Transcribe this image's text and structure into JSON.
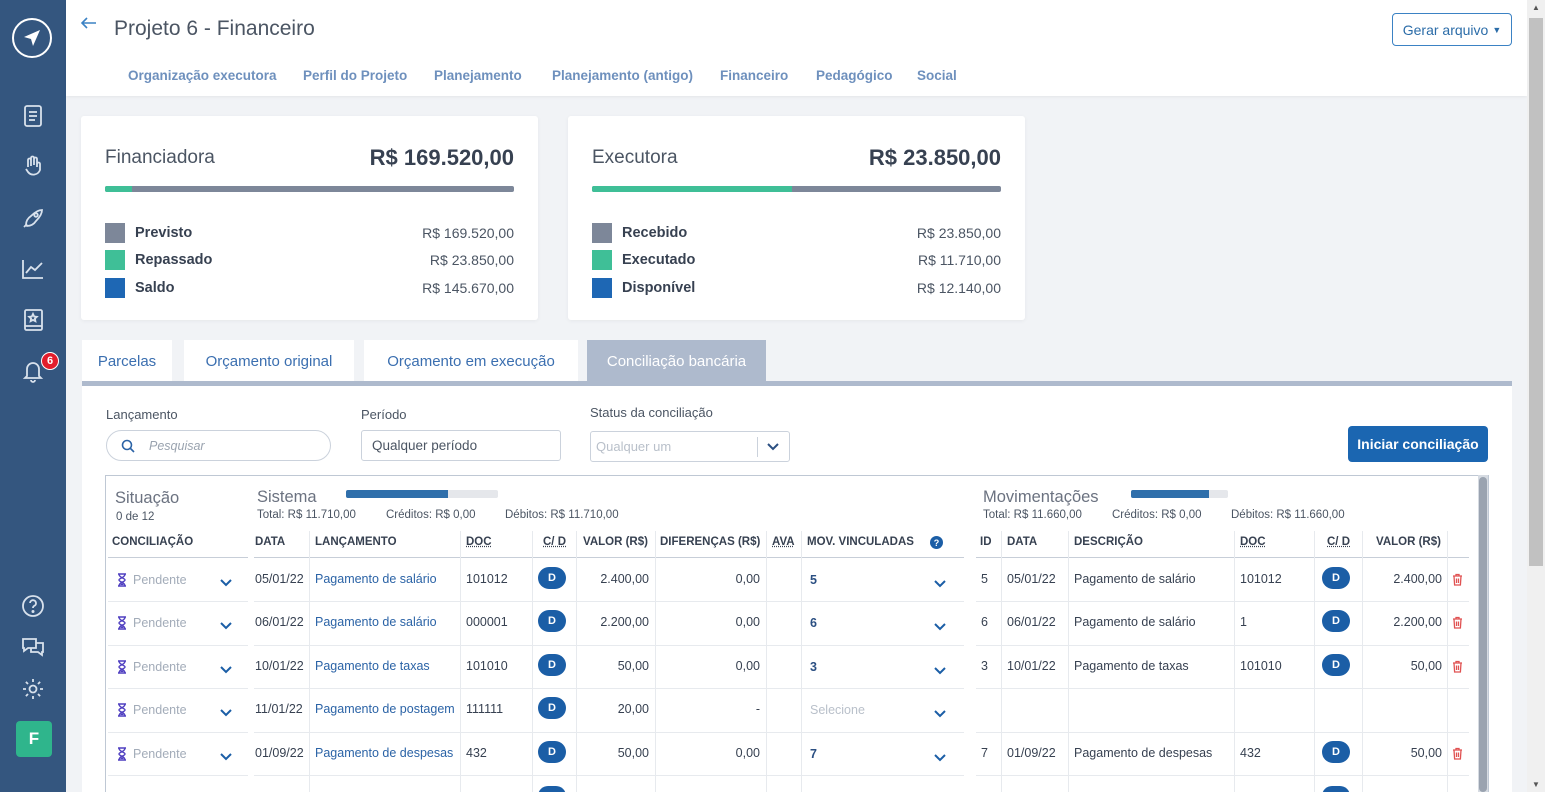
{
  "app": {
    "notifications_count": "6",
    "avatar_letter": "F"
  },
  "header": {
    "title": "Projeto 6 - Financeiro",
    "generate_label": "Gerar arquivo",
    "tabs": [
      "Organização executora",
      "Perfil do Projeto",
      "Planejamento",
      "Planejamento (antigo)",
      "Financeiro",
      "Pedagógico",
      "Social"
    ]
  },
  "financiadora": {
    "title": "Financiadora",
    "total": "R$ 169.520,00",
    "progress": 0.066,
    "rows": [
      {
        "label": "Previsto",
        "value": "R$ 169.520,00",
        "color": "#7d8799"
      },
      {
        "label": "Repassado",
        "value": "R$ 23.850,00",
        "color": "#3fbf97"
      },
      {
        "label": "Saldo",
        "value": "R$ 145.670,00",
        "color": "#1e67b4"
      }
    ]
  },
  "executora": {
    "title": "Executora",
    "total": "R$ 23.850,00",
    "progress": 0.49,
    "rows": [
      {
        "label": "Recebido",
        "value": "R$ 23.850,00",
        "color": "#7d8799"
      },
      {
        "label": "Executado",
        "value": "R$ 11.710,00",
        "color": "#3fbf97"
      },
      {
        "label": "Disponível",
        "value": "R$ 12.140,00",
        "color": "#1e67b4"
      }
    ]
  },
  "subtabs": [
    "Parcelas",
    "Orçamento original",
    "Orçamento em execução",
    "Conciliação bancária"
  ],
  "filters": {
    "lancamento_label": "Lançamento",
    "search_placeholder": "Pesquisar",
    "periodo_label": "Período",
    "periodo_value": "Qualquer período",
    "status_label": "Status da conciliação",
    "status_placeholder": "Qualquer um",
    "start_button": "Iniciar conciliação"
  },
  "situacao": {
    "title": "Situação",
    "count": "0 de 12",
    "col_header": "CONCILIAÇÃO",
    "status_label": "Pendente"
  },
  "sistema": {
    "title": "Sistema",
    "progress": 0.67,
    "total": "Total: R$ 11.710,00",
    "creditos": "Créditos: R$ 0,00",
    "debitos": "Débitos: R$ 11.710,00",
    "headers": [
      "DATA",
      "LANÇAMENTO",
      "DOC",
      "C/ D",
      "VALOR (R$)",
      "DIFERENÇAS (R$)",
      "AVA",
      "MOV. VINCULADAS"
    ],
    "rows": [
      {
        "data": "05/01/22",
        "lancamento": "Pagamento de salário",
        "doc": "101012",
        "cd": "D",
        "valor": "2.400,00",
        "diferenca": "0,00",
        "mov": "5"
      },
      {
        "data": "06/01/22",
        "lancamento": "Pagamento de salário",
        "doc": "000001",
        "cd": "D",
        "valor": "2.200,00",
        "diferenca": "0,00",
        "mov": "6"
      },
      {
        "data": "10/01/22",
        "lancamento": "Pagamento de taxas",
        "doc": "101010",
        "cd": "D",
        "valor": "50,00",
        "diferenca": "0,00",
        "mov": "3"
      },
      {
        "data": "11/01/22",
        "lancamento": "Pagamento de postagem",
        "doc": "111111",
        "cd": "D",
        "valor": "20,00",
        "diferenca": "-",
        "mov": "Selecione"
      },
      {
        "data": "01/09/22",
        "lancamento": "Pagamento de despesas",
        "doc": "432",
        "cd": "D",
        "valor": "50,00",
        "diferenca": "0,00",
        "mov": "7"
      }
    ]
  },
  "movimentacoes": {
    "title": "Movimentações",
    "progress": 0.8,
    "total": "Total: R$ 11.660,00",
    "creditos": "Créditos: R$ 0,00",
    "debitos": "Débitos: R$ 11.660,00",
    "headers": [
      "ID",
      "DATA",
      "DESCRIÇÃO",
      "DOC",
      "C/ D",
      "VALOR (R$)"
    ],
    "rows": [
      {
        "id": "5",
        "data": "05/01/22",
        "descricao": "Pagamento de salário",
        "doc": "101012",
        "cd": "D",
        "valor": "2.400,00"
      },
      {
        "id": "6",
        "data": "06/01/22",
        "descricao": "Pagamento de salário",
        "doc": "1",
        "cd": "D",
        "valor": "2.200,00"
      },
      {
        "id": "3",
        "data": "10/01/22",
        "descricao": "Pagamento de taxas",
        "doc": "101010",
        "cd": "D",
        "valor": "50,00"
      },
      null,
      {
        "id": "7",
        "data": "01/09/22",
        "descricao": "Pagamento de despesas",
        "doc": "432",
        "cd": "D",
        "valor": "50,00"
      }
    ]
  }
}
